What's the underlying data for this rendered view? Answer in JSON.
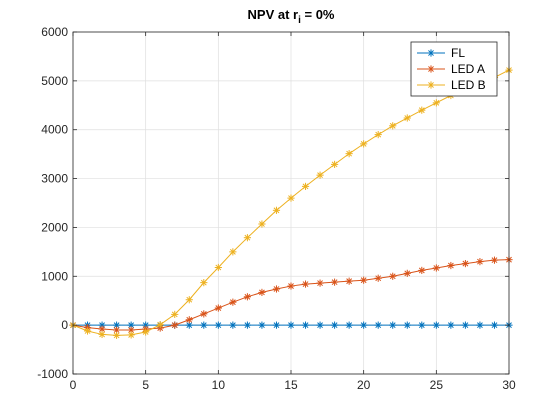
{
  "chart_data": {
    "type": "line",
    "title": "NPV at r",
    "title_sub": "i",
    "title_suffix": " = 0%",
    "xlim": [
      0,
      30
    ],
    "ylim": [
      -1000,
      6000
    ],
    "xticks": [
      0,
      5,
      10,
      15,
      20,
      25,
      30
    ],
    "yticks": [
      -1000,
      0,
      1000,
      2000,
      3000,
      4000,
      5000,
      6000
    ],
    "grid": true,
    "legend_position": "top-right",
    "marker": "asterisk",
    "x": [
      0,
      1,
      2,
      3,
      4,
      5,
      6,
      7,
      8,
      9,
      10,
      11,
      12,
      13,
      14,
      15,
      16,
      17,
      18,
      19,
      20,
      21,
      22,
      23,
      24,
      25,
      26,
      27,
      28,
      29,
      30
    ],
    "series": [
      {
        "name": "FL",
        "color": "#0072BD",
        "values": [
          0,
          0,
          0,
          0,
          0,
          0,
          0,
          0,
          0,
          0,
          0,
          0,
          0,
          0,
          0,
          0,
          0,
          0,
          0,
          0,
          0,
          0,
          0,
          0,
          0,
          0,
          0,
          0,
          0,
          0,
          0
        ]
      },
      {
        "name": "LED A",
        "color": "#D95319",
        "values": [
          0,
          -50,
          -80,
          -100,
          -100,
          -80,
          -60,
          0,
          110,
          230,
          350,
          470,
          580,
          670,
          740,
          800,
          840,
          860,
          880,
          900,
          920,
          960,
          1000,
          1060,
          1120,
          1170,
          1220,
          1260,
          1300,
          1330,
          1340
        ]
      },
      {
        "name": "LED B",
        "color": "#EDB120",
        "values": [
          0,
          -120,
          -190,
          -210,
          -200,
          -140,
          10,
          220,
          520,
          870,
          1180,
          1500,
          1790,
          2070,
          2350,
          2600,
          2840,
          3070,
          3290,
          3510,
          3710,
          3900,
          4080,
          4240,
          4400,
          4550,
          4700,
          4820,
          4940,
          5070,
          5220
        ]
      }
    ]
  }
}
